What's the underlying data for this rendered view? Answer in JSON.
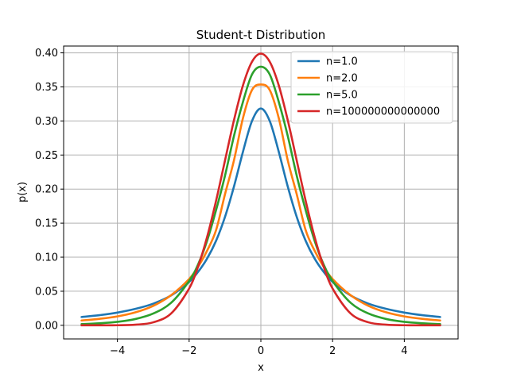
{
  "chart_data": {
    "type": "line",
    "title": "Student-t Distribution",
    "xlabel": "x",
    "ylabel": "p(x)",
    "xlim": [
      -5.5,
      5.5
    ],
    "ylim": [
      -0.02,
      0.41
    ],
    "xticks": [
      -4,
      -2,
      0,
      2,
      4
    ],
    "xtick_labels": [
      "−4",
      "−2",
      "0",
      "2",
      "4"
    ],
    "yticks": [
      0.0,
      0.05,
      0.1,
      0.15,
      0.2,
      0.25,
      0.3,
      0.35,
      0.4
    ],
    "ytick_labels": [
      "0.00",
      "0.05",
      "0.10",
      "0.15",
      "0.20",
      "0.25",
      "0.30",
      "0.35",
      "0.40"
    ],
    "grid": true,
    "legend_position": "top-right",
    "x": [
      -5,
      -4.5,
      -4,
      -3.5,
      -3,
      -2.5,
      -2,
      -1.75,
      -1.5,
      -1.25,
      -1,
      -0.75,
      -0.5,
      -0.25,
      0,
      0.25,
      0.5,
      0.75,
      1,
      1.25,
      1.5,
      1.75,
      2,
      2.5,
      3,
      3.5,
      4,
      4.5,
      5
    ],
    "series": [
      {
        "name": "n=1.0",
        "color": "#1f77b4",
        "values": [
          0.0122,
          0.0149,
          0.0187,
          0.0241,
          0.0318,
          0.0439,
          0.0637,
          0.0785,
          0.0979,
          0.124,
          0.1592,
          0.2037,
          0.2546,
          0.2996,
          0.3183,
          0.2996,
          0.2546,
          0.2037,
          0.1592,
          0.124,
          0.0979,
          0.0785,
          0.0637,
          0.0439,
          0.0318,
          0.0241,
          0.0187,
          0.0149,
          0.0122
        ]
      },
      {
        "name": "n=2.0",
        "color": "#ff7f0e",
        "values": [
          0.0071,
          0.0095,
          0.0131,
          0.019,
          0.0286,
          0.0443,
          0.068,
          0.086,
          0.1094,
          0.1396,
          0.1925,
          0.2422,
          0.304,
          0.3452,
          0.3536,
          0.3452,
          0.304,
          0.2422,
          0.1925,
          0.1396,
          0.1094,
          0.086,
          0.068,
          0.0443,
          0.0286,
          0.019,
          0.0131,
          0.0095,
          0.0071
        ]
      },
      {
        "name": "n=5.0",
        "color": "#2ca02c",
        "values": [
          0.0018,
          0.003,
          0.0051,
          0.0092,
          0.0173,
          0.0332,
          0.0651,
          0.0894,
          0.124,
          0.169,
          0.2197,
          0.278,
          0.3279,
          0.368,
          0.3796,
          0.368,
          0.3279,
          0.278,
          0.2197,
          0.169,
          0.124,
          0.0894,
          0.0651,
          0.0332,
          0.0173,
          0.0092,
          0.0051,
          0.003,
          0.0018
        ]
      },
      {
        "name": "n=100000000000000",
        "color": "#d62728",
        "values": [
          0.0,
          0.0,
          0.0001,
          0.0009,
          0.0044,
          0.0175,
          0.054,
          0.0863,
          0.1295,
          0.1826,
          0.242,
          0.3011,
          0.3521,
          0.3867,
          0.3989,
          0.3867,
          0.3521,
          0.3011,
          0.242,
          0.1826,
          0.1295,
          0.0863,
          0.054,
          0.0175,
          0.0044,
          0.0009,
          0.0001,
          0.0,
          0.0
        ]
      }
    ]
  }
}
